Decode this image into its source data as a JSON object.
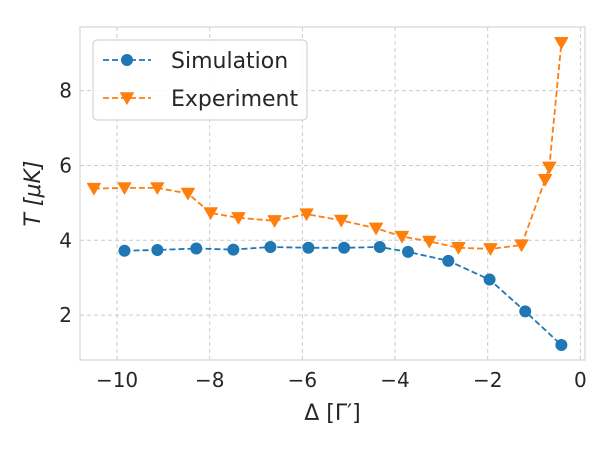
{
  "chart_data": {
    "type": "line",
    "xlabel": "Δ [Γ′]",
    "ylabel": "T [μK]",
    "xlim": [
      -10.8,
      0.1
    ],
    "ylim": [
      0.8,
      9.7
    ],
    "x_ticks": [
      -10,
      -8,
      -6,
      -4,
      -2,
      0
    ],
    "x_tick_labels": [
      "−10",
      "−8",
      "−6",
      "−4",
      "−2",
      "0"
    ],
    "y_ticks": [
      2,
      4,
      6,
      8
    ],
    "y_tick_labels": [
      "2",
      "4",
      "6",
      "8"
    ],
    "grid": true,
    "legend_position": "upper-left",
    "series": [
      {
        "name": "Simulation",
        "color": "#1f77b4",
        "marker": "circle",
        "line_style": "dashed",
        "x": [
          -9.84,
          -9.13,
          -8.29,
          -7.49,
          -6.69,
          -5.87,
          -5.1,
          -4.33,
          -3.72,
          -2.85,
          -1.96,
          -1.19,
          -0.41
        ],
        "y": [
          3.72,
          3.74,
          3.78,
          3.75,
          3.82,
          3.8,
          3.8,
          3.82,
          3.69,
          3.45,
          2.95,
          2.1,
          1.2
        ]
      },
      {
        "name": "Experiment",
        "color": "#ff7f0e",
        "marker": "triangle-down",
        "line_style": "dashed",
        "x": [
          -10.5,
          -9.84,
          -9.13,
          -8.47,
          -7.98,
          -7.38,
          -6.6,
          -5.91,
          -5.16,
          -4.41,
          -3.85,
          -3.26,
          -2.63,
          -1.94,
          -1.27,
          -0.76,
          -0.67,
          -0.41
        ],
        "y": [
          5.38,
          5.4,
          5.4,
          5.25,
          4.73,
          4.6,
          4.52,
          4.7,
          4.53,
          4.32,
          4.1,
          3.97,
          3.8,
          3.77,
          3.87,
          5.62,
          5.95,
          9.28
        ]
      }
    ]
  }
}
